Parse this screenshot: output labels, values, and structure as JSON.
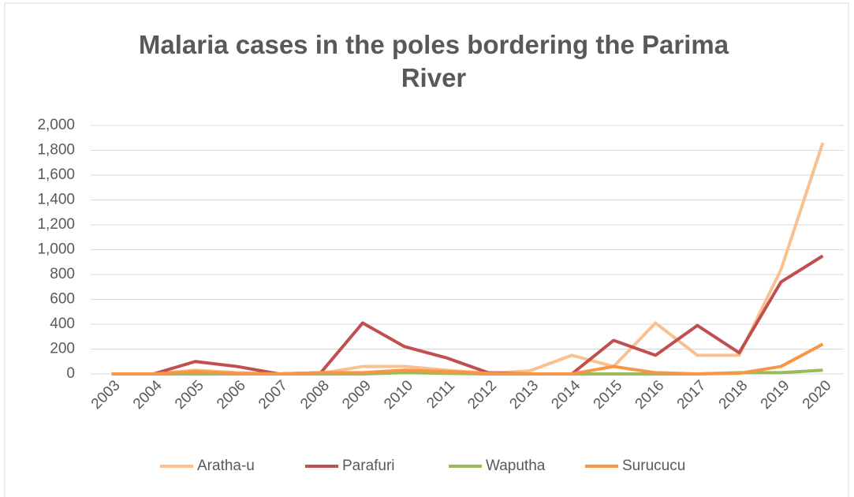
{
  "chart_data": {
    "type": "line",
    "title": "Malaria cases in the poles bordering the Parima River",
    "categories": [
      "2003",
      "2004",
      "2005",
      "2006",
      "2007",
      "2008",
      "2009",
      "2010",
      "2011",
      "2012",
      "2013",
      "2014",
      "2015",
      "2016",
      "2017",
      "2018",
      "2019",
      "2020"
    ],
    "series": [
      {
        "name": "Aratha-u",
        "color": "#fac090",
        "values": [
          0,
          0,
          30,
          10,
          0,
          5,
          60,
          60,
          30,
          5,
          25,
          150,
          60,
          410,
          150,
          150,
          840,
          1860
        ]
      },
      {
        "name": "Parafuri",
        "color": "#c0504d",
        "values": [
          0,
          0,
          100,
          60,
          0,
          10,
          410,
          220,
          130,
          10,
          0,
          0,
          270,
          150,
          390,
          170,
          740,
          950
        ]
      },
      {
        "name": "Waputha",
        "color": "#9bbb59",
        "values": [
          0,
          0,
          0,
          0,
          0,
          0,
          0,
          10,
          5,
          0,
          0,
          0,
          0,
          0,
          0,
          10,
          10,
          30
        ]
      },
      {
        "name": "Surucucu",
        "color": "#f79646",
        "values": [
          0,
          0,
          20,
          5,
          0,
          10,
          10,
          30,
          20,
          5,
          0,
          0,
          60,
          10,
          0,
          5,
          60,
          240
        ]
      }
    ],
    "ylim": [
      0,
      2000
    ],
    "yticks": [
      0,
      200,
      400,
      600,
      800,
      {
        "value": 1000,
        "label": "1,000"
      },
      {
        "value": 1200,
        "label": "1,200"
      },
      {
        "value": 1400,
        "label": "1,400"
      },
      {
        "value": 1600,
        "label": "1,600"
      },
      {
        "value": 1800,
        "label": "1,800"
      },
      {
        "value": 2000,
        "label": "2,000"
      }
    ],
    "grid": true,
    "legend": "bottom"
  }
}
